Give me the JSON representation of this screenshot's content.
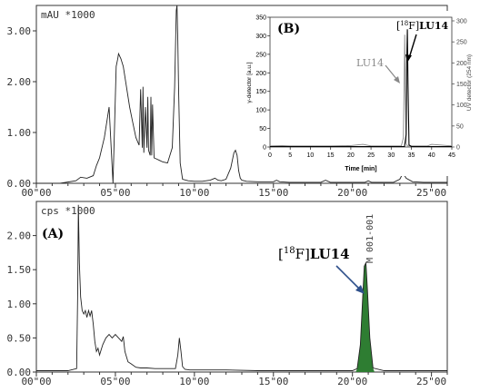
{
  "chart_data": [
    {
      "type": "line",
      "unit_label": "mAU *1000",
      "xlabel": "",
      "ylabel": "",
      "xlim": [
        0,
        26.0
      ],
      "ylim": [
        0,
        3.5
      ],
      "x_ticks": [
        0,
        5,
        10,
        15,
        20,
        25
      ],
      "x_tick_labels": [
        "00\"00",
        "05\"00",
        "10\"00",
        "15\"00",
        "20\"00",
        "25\"00"
      ],
      "y_ticks": [
        0,
        1,
        2,
        3
      ],
      "y_tick_labels": [
        "0.00",
        "1.00",
        "2.00",
        "3.00"
      ],
      "series": [
        {
          "x": [
            0,
            1.5,
            2.5,
            2.8,
            3.2,
            3.6,
            3.8,
            4.0,
            4.3,
            4.6,
            4.85,
            5.05,
            5.15,
            5.2,
            5.35,
            5.5,
            5.7,
            5.9,
            6.1,
            6.3,
            6.5,
            6.6,
            6.7,
            6.75,
            6.8,
            6.9,
            7.0,
            7.05,
            7.1,
            7.2,
            7.25,
            7.3,
            7.35,
            7.45,
            7.6,
            7.8,
            8.0,
            8.3,
            8.6,
            8.75,
            8.85,
            8.9,
            8.95,
            9.0,
            9.1,
            9.25,
            9.6,
            10.0,
            10.5,
            11.0,
            11.3,
            11.5,
            11.7,
            12.0,
            12.3,
            12.5,
            12.6,
            12.7,
            12.8,
            12.9,
            13.0,
            13.3,
            14.0,
            15.0,
            15.2,
            15.4,
            16.0,
            17.0,
            18.0,
            18.3,
            18.6,
            19.0,
            20.0,
            20.8,
            21.0,
            21.2,
            22.0,
            22.6,
            23.0,
            23.2,
            23.4,
            23.8,
            24.5,
            26.0
          ],
          "y": [
            0.0,
            0.0,
            0.05,
            0.12,
            0.1,
            0.15,
            0.35,
            0.5,
            0.9,
            1.5,
            0.0,
            2.3,
            2.45,
            2.55,
            2.45,
            2.3,
            1.9,
            1.5,
            1.2,
            0.9,
            0.75,
            1.85,
            0.7,
            1.9,
            0.6,
            1.5,
            0.7,
            1.7,
            0.65,
            0.55,
            1.7,
            0.55,
            1.55,
            0.5,
            0.48,
            0.45,
            0.42,
            0.4,
            0.7,
            1.9,
            3.4,
            3.5,
            2.8,
            1.8,
            0.4,
            0.08,
            0.05,
            0.04,
            0.04,
            0.06,
            0.1,
            0.06,
            0.05,
            0.08,
            0.3,
            0.6,
            0.65,
            0.55,
            0.25,
            0.1,
            0.06,
            0.04,
            0.03,
            0.03,
            0.06,
            0.03,
            0.02,
            0.02,
            0.02,
            0.06,
            0.02,
            0.02,
            0.02,
            0.02,
            0.05,
            0.02,
            0.02,
            0.02,
            0.08,
            0.2,
            0.1,
            0.03,
            0.02,
            0.02
          ]
        }
      ]
    },
    {
      "type": "line",
      "unit_label": "cps *1000",
      "panel_label": "(A)",
      "annotation": {
        "pre": "[",
        "sup": "18",
        "mid": "F]",
        "bold": "LU14"
      },
      "peak_label": "M 001-001",
      "xlabel": "",
      "ylabel": "",
      "xlim": [
        0,
        26.0
      ],
      "ylim": [
        0,
        2.5
      ],
      "x_ticks": [
        0,
        5,
        10,
        15,
        20,
        25
      ],
      "x_tick_labels": [
        "00\"00",
        "05\"00",
        "10\"00",
        "15\"00",
        "20\"00",
        "25\"00"
      ],
      "y_ticks": [
        0,
        0.5,
        1,
        1.5,
        2
      ],
      "y_tick_labels": [
        "0.00",
        "0.50",
        "1.00",
        "1.50",
        "2.00"
      ],
      "series": [
        {
          "x": [
            0,
            2.0,
            2.55,
            2.62,
            2.66,
            2.72,
            2.8,
            2.9,
            3.0,
            3.1,
            3.2,
            3.3,
            3.4,
            3.5,
            3.6,
            3.7,
            3.8,
            3.9,
            4.0,
            4.2,
            4.4,
            4.6,
            4.8,
            5.0,
            5.2,
            5.4,
            5.5,
            5.6,
            5.8,
            6.0,
            6.3,
            6.6,
            7.0,
            7.5,
            8.0,
            8.5,
            8.8,
            8.95,
            9.05,
            9.15,
            9.25,
            9.4,
            9.7,
            10.2,
            11.0,
            12.0,
            14.0,
            16.0,
            18.0,
            19.0,
            20.0,
            20.3,
            20.5,
            20.65,
            20.75,
            20.85,
            20.95,
            21.1,
            21.3,
            22.0,
            26.0
          ],
          "y": [
            0.02,
            0.02,
            0.05,
            1.2,
            2.45,
            1.6,
            1.1,
            0.9,
            0.85,
            0.9,
            0.8,
            0.9,
            0.82,
            0.9,
            0.7,
            0.45,
            0.3,
            0.35,
            0.25,
            0.4,
            0.5,
            0.55,
            0.5,
            0.55,
            0.5,
            0.45,
            0.52,
            0.3,
            0.15,
            0.12,
            0.07,
            0.06,
            0.06,
            0.05,
            0.05,
            0.05,
            0.05,
            0.25,
            0.5,
            0.3,
            0.08,
            0.04,
            0.03,
            0.03,
            0.03,
            0.03,
            0.02,
            0.02,
            0.02,
            0.02,
            0.02,
            0.05,
            0.4,
            1.1,
            1.55,
            1.6,
            1.2,
            0.5,
            0.06,
            0.02,
            0.02
          ]
        }
      ],
      "highlight_peak": {
        "x_from": 20.2,
        "x_to": 21.4,
        "color": "#2e7d32"
      }
    },
    {
      "type": "line",
      "panel_label": "(B)",
      "xlabel": "Time [min]",
      "ylabel": "γ-detector [a.u.]",
      "y2label": "UV detector (254 nm)",
      "xlim": [
        0,
        45
      ],
      "ylim": [
        0,
        350
      ],
      "y2lim": [
        0,
        300
      ],
      "x_ticks": [
        0,
        5,
        10,
        15,
        20,
        25,
        30,
        35,
        40,
        45
      ],
      "y_ticks": [
        0,
        50,
        100,
        150,
        200,
        250,
        300,
        350
      ],
      "y2_ticks": [
        0,
        50,
        100,
        150,
        200,
        250,
        300
      ],
      "annotations": [
        {
          "text": "LU14",
          "color": "#888888"
        },
        {
          "pre": "[",
          "sup": "18",
          "mid": "F]",
          "bold": "LU14",
          "color": "#000000"
        }
      ],
      "series": [
        {
          "x": [
            0,
            3,
            5,
            10,
            15,
            20,
            23,
            25,
            30,
            32.5,
            33.0,
            33.2,
            33.35,
            33.5,
            33.7,
            34,
            36,
            39,
            40,
            45
          ],
          "y": [
            3,
            4,
            3,
            3,
            3,
            4,
            7,
            3,
            3,
            3,
            25,
            180,
            303,
            150,
            10,
            3,
            3,
            3,
            7,
            3
          ],
          "color": "#888888"
        },
        {
          "x": [
            0,
            5,
            10,
            15,
            20,
            25,
            30,
            33.3,
            33.7,
            33.85,
            34.0,
            34.15,
            34.4,
            35,
            40,
            45
          ],
          "y": [
            1,
            1,
            1,
            1,
            1,
            1,
            1,
            1,
            30,
            200,
            280,
            150,
            5,
            1,
            1,
            1
          ],
          "color": "#000000"
        }
      ]
    }
  ]
}
